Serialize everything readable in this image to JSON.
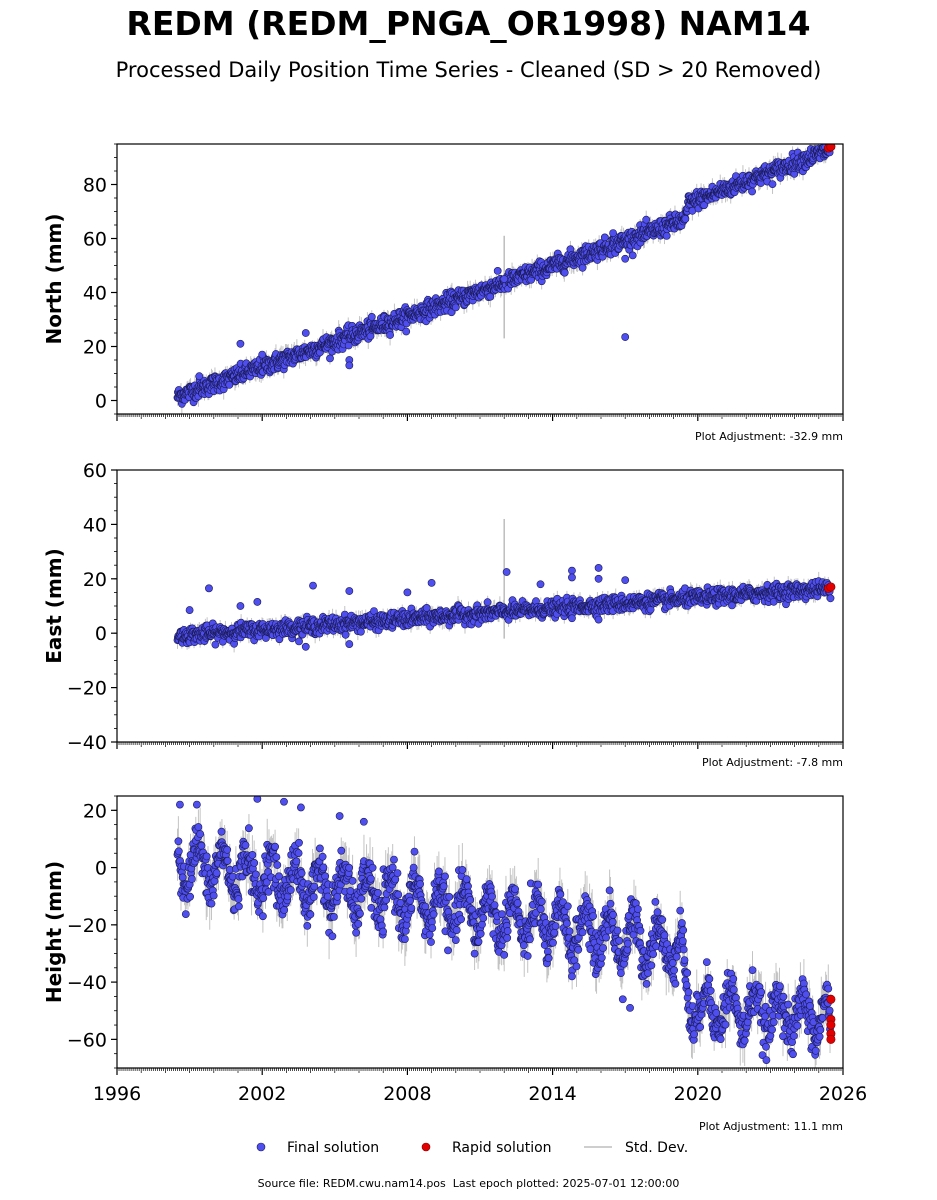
{
  "title": "REDM (REDM_PNGA_OR1998) NAM14",
  "subtitle": "Processed Daily Position Time Series - Cleaned (SD > 20 Removed)",
  "colors": {
    "final": "#4f4ff0",
    "final_edge": "#1a1a55",
    "rapid": "#e30000",
    "std": "#bdbdbd"
  },
  "chart_data": [
    {
      "type": "scatter",
      "ylabel": "North (mm)",
      "xlim": [
        1996,
        2026
      ],
      "ylim": [
        -5,
        95
      ],
      "yticks": [
        0,
        20,
        40,
        60,
        80
      ],
      "adjustment": "Plot Adjustment: -32.9 mm",
      "trend": [
        [
          1998.5,
          1.5
        ],
        [
          2019.5,
          67
        ],
        [
          2019.6,
          73
        ],
        [
          2025.5,
          93
        ]
      ],
      "noise": 1.6,
      "seasonal": 0.0,
      "outliers": [
        [
          2001.1,
          21
        ],
        [
          2002.0,
          17
        ],
        [
          2003.8,
          25
        ],
        [
          2005.6,
          15
        ],
        [
          2005.6,
          13
        ],
        [
          2012.0,
          45
        ],
        [
          2016.5,
          62
        ],
        [
          2017.0,
          52.5
        ],
        [
          2017.0,
          23.5
        ],
        [
          1999.4,
          9
        ]
      ],
      "std_spikes": [
        [
          2012.0,
          23,
          61
        ]
      ],
      "rapid": [
        [
          2025.4,
          93.5
        ],
        [
          2025.5,
          94
        ]
      ]
    },
    {
      "type": "scatter",
      "ylabel": "East (mm)",
      "xlim": [
        1996,
        2026
      ],
      "ylim": [
        -40,
        60
      ],
      "yticks": [
        -40,
        -20,
        0,
        20,
        40,
        60
      ],
      "adjustment": "Plot Adjustment: -7.8 mm",
      "trend": [
        [
          1998.5,
          -1
        ],
        [
          2025.5,
          16.5
        ]
      ],
      "noise": 1.4,
      "seasonal": 0.0,
      "outliers": [
        [
          1999.0,
          8.5
        ],
        [
          1999.8,
          16.5
        ],
        [
          2001.1,
          10
        ],
        [
          2001.8,
          11.5
        ],
        [
          2003.8,
          -5
        ],
        [
          2004.1,
          17.5
        ],
        [
          2005.6,
          15.5
        ],
        [
          2005.6,
          -4
        ],
        [
          2008.0,
          15
        ],
        [
          2009.0,
          18.5
        ],
        [
          2012.1,
          22.5
        ],
        [
          2013.5,
          18
        ],
        [
          2014.8,
          23
        ],
        [
          2014.8,
          20.5
        ],
        [
          2015.9,
          24
        ],
        [
          2015.9,
          20
        ],
        [
          2017.0,
          19.5
        ],
        [
          2015.9,
          5
        ],
        [
          2014.8,
          5.5
        ]
      ],
      "std_spikes": [
        [
          2012.0,
          -2,
          42
        ]
      ],
      "rapid": [
        [
          2025.4,
          16.5
        ],
        [
          2025.5,
          17
        ]
      ]
    },
    {
      "type": "scatter",
      "ylabel": "Height (mm)",
      "xlim": [
        1996,
        2026
      ],
      "ylim": [
        -70,
        25
      ],
      "yticks": [
        -60,
        -40,
        -20,
        0,
        20
      ],
      "xticks": [
        1996,
        2002,
        2008,
        2014,
        2020,
        2026
      ],
      "adjustment": "Plot Adjustment: 11.1 mm",
      "trend": [
        [
          1998.5,
          2
        ],
        [
          2019.3,
          -28
        ],
        [
          2019.6,
          -48
        ],
        [
          2025.5,
          -53
        ]
      ],
      "noise": 3.8,
      "seasonal": 7.5,
      "outliers": [
        [
          1998.6,
          22
        ],
        [
          1999.3,
          22
        ],
        [
          2001.8,
          24
        ],
        [
          2002.9,
          23
        ],
        [
          2003.6,
          21
        ],
        [
          2005.2,
          18
        ],
        [
          2006.2,
          16
        ],
        [
          2017.2,
          -49
        ],
        [
          2016.9,
          -46
        ],
        [
          2004.9,
          -24
        ],
        [
          2014.8,
          -38
        ]
      ],
      "std_spikes": [],
      "rapid": [
        [
          2025.5,
          -46
        ],
        [
          2025.5,
          -53
        ],
        [
          2025.5,
          -55
        ],
        [
          2025.5,
          -58
        ],
        [
          2025.5,
          -60
        ]
      ]
    }
  ],
  "legend": {
    "final_label": "Final solution",
    "rapid_label": "Rapid solution",
    "std_label": "Std. Dev."
  },
  "footer": {
    "source": "Source file: REDM.cwu.nam14.pos",
    "last_epoch": "Last epoch plotted: 2025-07-01 12:00:00"
  }
}
